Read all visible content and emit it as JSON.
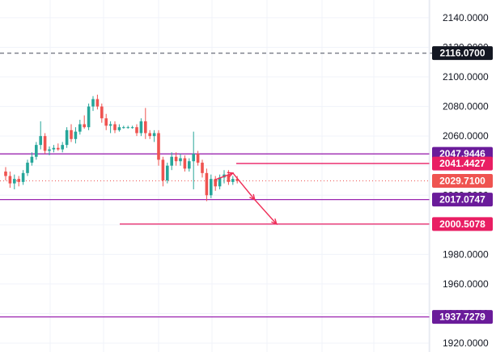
{
  "chart_data": {
    "type": "candlestick",
    "title": "",
    "xlabel": "",
    "ylabel": "",
    "ylim": [
      1914,
      2152
    ],
    "grid": true,
    "legend": "none",
    "y_ticks": [
      "2140.0000",
      "2120.0000",
      "2100.0000",
      "2080.0000",
      "2060.0000",
      "2040.0000",
      "2020.0000",
      "2000.0000",
      "1980.0000",
      "1960.0000",
      "1940.0000",
      "1920.0000"
    ],
    "price_lines": [
      {
        "label": "2116.0700",
        "value": 2116.07,
        "style": "dashed",
        "color": "#787b86",
        "badge_color": "#131722"
      },
      {
        "label": "2047.9446",
        "value": 2047.9446,
        "style": "solid",
        "color": "#9c27b0",
        "badge_color": "#6a1b9a"
      },
      {
        "label": "2041.4427",
        "value": 2041.4427,
        "style": "solid",
        "color": "#e91e63",
        "badge_color": "#e91e63"
      },
      {
        "label": "2029.7100",
        "value": 2029.71,
        "style": "dotted",
        "color": "#ef5350",
        "badge_color": "#ef5350"
      },
      {
        "label": "2017.0747",
        "value": 2017.0747,
        "style": "solid",
        "color": "#9c27b0",
        "badge_color": "#6a1b9a"
      },
      {
        "label": "2000.5078",
        "value": 2000.5078,
        "style": "solid",
        "color": "#e91e63",
        "badge_color": "#e91e63"
      },
      {
        "label": "1937.7279",
        "value": 1937.7279,
        "style": "solid",
        "color": "#9c27b0",
        "badge_color": "#6a1b9a"
      }
    ],
    "candles": [
      {
        "o": 2036,
        "h": 2039,
        "l": 2030,
        "c": 2033
      },
      {
        "o": 2033,
        "h": 2036,
        "l": 2025,
        "c": 2028
      },
      {
        "o": 2028,
        "h": 2034,
        "l": 2024,
        "c": 2031
      },
      {
        "o": 2031,
        "h": 2033,
        "l": 2026,
        "c": 2029
      },
      {
        "o": 2029,
        "h": 2037,
        "l": 2027,
        "c": 2035
      },
      {
        "o": 2035,
        "h": 2044,
        "l": 2033,
        "c": 2042
      },
      {
        "o": 2042,
        "h": 2049,
        "l": 2040,
        "c": 2046
      },
      {
        "o": 2046,
        "h": 2056,
        "l": 2044,
        "c": 2054
      },
      {
        "o": 2054,
        "h": 2070,
        "l": 2051,
        "c": 2060
      },
      {
        "o": 2060,
        "h": 2062,
        "l": 2048,
        "c": 2050
      },
      {
        "o": 2050,
        "h": 2053,
        "l": 2047,
        "c": 2051
      },
      {
        "o": 2051,
        "h": 2054,
        "l": 2049,
        "c": 2052
      },
      {
        "o": 2052,
        "h": 2055,
        "l": 2050,
        "c": 2051
      },
      {
        "o": 2051,
        "h": 2056,
        "l": 2049,
        "c": 2054
      },
      {
        "o": 2054,
        "h": 2066,
        "l": 2052,
        "c": 2064
      },
      {
        "o": 2064,
        "h": 2068,
        "l": 2056,
        "c": 2058
      },
      {
        "o": 2058,
        "h": 2066,
        "l": 2055,
        "c": 2063
      },
      {
        "o": 2063,
        "h": 2071,
        "l": 2061,
        "c": 2068
      },
      {
        "o": 2068,
        "h": 2074,
        "l": 2065,
        "c": 2066
      },
      {
        "o": 2066,
        "h": 2082,
        "l": 2064,
        "c": 2080
      },
      {
        "o": 2080,
        "h": 2087,
        "l": 2077,
        "c": 2085
      },
      {
        "o": 2085,
        "h": 2088,
        "l": 2078,
        "c": 2080
      },
      {
        "o": 2080,
        "h": 2082,
        "l": 2069,
        "c": 2072
      },
      {
        "o": 2072,
        "h": 2075,
        "l": 2064,
        "c": 2067
      },
      {
        "o": 2067,
        "h": 2070,
        "l": 2062,
        "c": 2068
      },
      {
        "o": 2068,
        "h": 2070,
        "l": 2062,
        "c": 2064
      },
      {
        "o": 2064,
        "h": 2068,
        "l": 2063,
        "c": 2066
      },
      {
        "o": 2066,
        "h": 2067,
        "l": 2065,
        "c": 2066
      },
      {
        "o": 2066,
        "h": 2067,
        "l": 2065,
        "c": 2066
      },
      {
        "o": 2066,
        "h": 2067,
        "l": 2065,
        "c": 2066
      },
      {
        "o": 2066,
        "h": 2068,
        "l": 2060,
        "c": 2062
      },
      {
        "o": 2062,
        "h": 2072,
        "l": 2060,
        "c": 2070
      },
      {
        "o": 2070,
        "h": 2079,
        "l": 2058,
        "c": 2062
      },
      {
        "o": 2062,
        "h": 2064,
        "l": 2058,
        "c": 2060
      },
      {
        "o": 2060,
        "h": 2064,
        "l": 2056,
        "c": 2062
      },
      {
        "o": 2062,
        "h": 2064,
        "l": 2040,
        "c": 2044
      },
      {
        "o": 2044,
        "h": 2046,
        "l": 2026,
        "c": 2030
      },
      {
        "o": 2030,
        "h": 2042,
        "l": 2028,
        "c": 2040
      },
      {
        "o": 2040,
        "h": 2049,
        "l": 2037,
        "c": 2046
      },
      {
        "o": 2046,
        "h": 2049,
        "l": 2040,
        "c": 2043
      },
      {
        "o": 2043,
        "h": 2048,
        "l": 2040,
        "c": 2045
      },
      {
        "o": 2045,
        "h": 2047,
        "l": 2036,
        "c": 2038
      },
      {
        "o": 2038,
        "h": 2045,
        "l": 2036,
        "c": 2043
      },
      {
        "o": 2043,
        "h": 2063,
        "l": 2024,
        "c": 2048
      },
      {
        "o": 2048,
        "h": 2050,
        "l": 2040,
        "c": 2042
      },
      {
        "o": 2042,
        "h": 2044,
        "l": 2032,
        "c": 2035
      },
      {
        "o": 2035,
        "h": 2038,
        "l": 2016,
        "c": 2020
      },
      {
        "o": 2020,
        "h": 2034,
        "l": 2018,
        "c": 2031
      },
      {
        "o": 2031,
        "h": 2033,
        "l": 2023,
        "c": 2026
      },
      {
        "o": 2026,
        "h": 2034,
        "l": 2024,
        "c": 2032
      },
      {
        "o": 2032,
        "h": 2037,
        "l": 2028,
        "c": 2034
      },
      {
        "o": 2034,
        "h": 2037,
        "l": 2027,
        "c": 2029
      },
      {
        "o": 2029,
        "h": 2033,
        "l": 2027,
        "c": 2031
      },
      {
        "o": 2031,
        "h": 2033,
        "l": 2028,
        "c": 2029.71
      }
    ],
    "arrows": [
      [
        {
          "t": 48,
          "p": 2030.5
        },
        {
          "t": 52,
          "p": 2035
        }
      ],
      [
        {
          "t": 52,
          "p": 2035
        },
        {
          "t": 57,
          "p": 2017
        }
      ],
      [
        {
          "t": 57,
          "p": 2017
        },
        {
          "t": 62,
          "p": 2000.5
        }
      ]
    ],
    "colors": {
      "up": "#26a69a",
      "down": "#ef5350",
      "grid": "#f0f3fa",
      "axis_border": "#e0e3eb",
      "arrow": "#ef2d56"
    }
  }
}
